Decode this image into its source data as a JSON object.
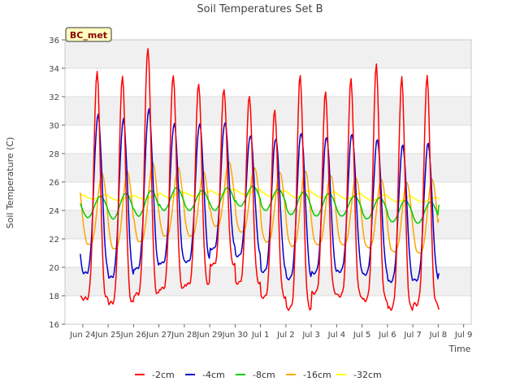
{
  "chart_data": {
    "type": "line",
    "title": "Soil Temperatures Set B",
    "xlabel": "Time",
    "ylabel": "Soil Temperature (C)",
    "badge": "BC_met",
    "ylim": [
      16,
      36
    ],
    "xlim": [
      "2024-06-23",
      "2024-07-09"
    ],
    "yticks": [
      16,
      18,
      20,
      22,
      24,
      26,
      28,
      30,
      32,
      34,
      36
    ],
    "xticks": [
      "Jun 24",
      "Jun 25",
      "Jun 26",
      "Jun 27",
      "Jun 28",
      "Jun 29",
      "Jun 30",
      "Jul 1",
      "Jul 2",
      "Jul 3",
      "Jul 4",
      "Jul 5",
      "Jul 6",
      "Jul 7",
      "Jul 8",
      "Jul 9"
    ],
    "x_day_offsets": [
      0,
      1,
      2,
      3,
      4,
      5,
      6,
      7,
      8,
      9,
      10,
      11,
      12,
      13,
      14,
      15
    ],
    "days": [
      "Jun 24",
      "Jun 25",
      "Jun 26",
      "Jun 27",
      "Jun 28",
      "Jun 29",
      "Jun 30",
      "Jul 1",
      "Jul 2",
      "Jul 3",
      "Jul 4",
      "Jul 5",
      "Jul 6",
      "Jul 7",
      "Jul 8"
    ],
    "grid": true,
    "legend_position": "bottom",
    "series": [
      {
        "name": "-2cm",
        "color": "#ff0000",
        "daily_max": [
          33.8,
          33.5,
          35.5,
          33.6,
          33.0,
          32.6,
          32.1,
          31.1,
          33.5,
          32.3,
          33.2,
          34.2,
          33.3,
          33.4,
          31.4
        ],
        "daily_min": [
          17.8,
          17.5,
          18.1,
          18.5,
          18.8,
          20.2,
          18.9,
          17.9,
          17.1,
          18.2,
          18.0,
          17.7,
          17.1,
          17.4,
          17.1
        ]
      },
      {
        "name": "-4cm",
        "color": "#0000cc",
        "daily_max": [
          30.7,
          30.4,
          31.1,
          30.1,
          30.1,
          30.2,
          29.3,
          29.1,
          29.5,
          29.2,
          29.4,
          29.0,
          28.6,
          28.7,
          29.0
        ],
        "daily_min": [
          19.6,
          19.3,
          19.9,
          20.3,
          20.4,
          21.3,
          20.8,
          19.7,
          19.2,
          19.6,
          19.7,
          19.5,
          19.0,
          19.1,
          19.6
        ]
      },
      {
        "name": "-8cm",
        "color": "#00cc00",
        "daily_max": [
          25.0,
          25.2,
          25.4,
          25.6,
          25.4,
          25.6,
          25.7,
          25.5,
          25.3,
          25.2,
          25.0,
          24.9,
          24.7,
          24.6,
          24.7
        ],
        "daily_min": [
          23.5,
          23.4,
          23.6,
          24.0,
          24.0,
          24.0,
          24.3,
          24.0,
          23.7,
          23.6,
          23.6,
          23.4,
          23.2,
          23.1,
          24.3
        ]
      },
      {
        "name": "-16cm",
        "color": "#ffa500",
        "daily_max": [
          26.6,
          26.7,
          27.3,
          27.0,
          26.7,
          27.4,
          27.0,
          26.7,
          26.8,
          26.5,
          26.3,
          26.2,
          26.0,
          26.2,
          26.3
        ],
        "daily_min": [
          21.6,
          21.3,
          21.8,
          22.2,
          22.2,
          22.9,
          22.5,
          21.8,
          21.5,
          21.6,
          21.6,
          21.4,
          21.1,
          21.0,
          22.2
        ]
      },
      {
        "name": "-32cm",
        "color": "#ffff00",
        "daily_max": [
          25.1,
          25.0,
          25.1,
          25.3,
          25.3,
          25.5,
          25.5,
          25.4,
          25.4,
          25.3,
          25.2,
          25.1,
          25.0,
          24.9,
          24.8
        ],
        "daily_min": [
          24.8,
          24.7,
          24.8,
          24.9,
          25.0,
          25.1,
          25.1,
          25.0,
          24.9,
          24.9,
          24.8,
          24.7,
          24.6,
          24.6,
          24.5
        ]
      }
    ]
  }
}
